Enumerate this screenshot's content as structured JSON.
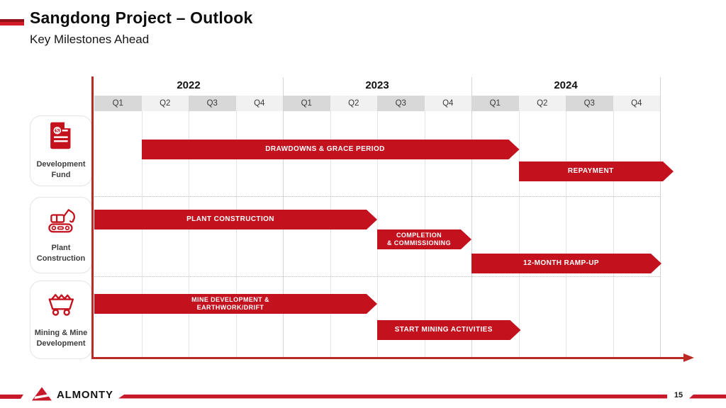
{
  "slide": {
    "title": "Sangdong Project – Outlook",
    "subtitle": "Key Milestones Ahead",
    "page_number": "15",
    "logo_text": "ALMONTY"
  },
  "colors": {
    "bar_red": "#c3121e",
    "axis_red": "#bb2b24",
    "footer_red": "#c8192b",
    "quarter_cell_dark": "#d8d8d8",
    "quarter_cell_light": "#f1f1f1"
  },
  "timeline": {
    "years": [
      {
        "label": "2022",
        "quarters": [
          "Q1",
          "Q2",
          "Q3",
          "Q4"
        ]
      },
      {
        "label": "2023",
        "quarters": [
          "Q1",
          "Q2",
          "Q3",
          "Q4"
        ]
      },
      {
        "label": "2024",
        "quarters": [
          "Q1",
          "Q2",
          "Q3",
          "Q4"
        ]
      }
    ]
  },
  "lanes": [
    {
      "label": "Development Fund",
      "icon": "document-dollar-icon"
    },
    {
      "label": "Plant Construction",
      "icon": "excavator-icon"
    },
    {
      "label": "Mining & Mine Development",
      "icon": "mine-cart-icon"
    }
  ],
  "chart_data": {
    "type": "bar",
    "subtype": "gantt-timeline",
    "title": "Sangdong Project – Outlook: Key Milestones Ahead",
    "x_axis_quarters": [
      "2022 Q1",
      "2022 Q2",
      "2022 Q3",
      "2022 Q4",
      "2023 Q1",
      "2023 Q2",
      "2023 Q3",
      "2023 Q4",
      "2024 Q1",
      "2024 Q2",
      "2024 Q3",
      "2024 Q4"
    ],
    "legend": "none",
    "grid": true,
    "bars": [
      {
        "lane": "Development Fund",
        "label": "DRAWDOWNS & GRACE PERIOD",
        "start": "2022 Q2",
        "end": "2024 Q1",
        "start_index": 1,
        "end_index": 9
      },
      {
        "lane": "Development Fund",
        "label": "REPAYMENT",
        "start": "2024 Q2",
        "end": "beyond 2024 Q4",
        "start_index": 9,
        "end_index": 12,
        "extends_beyond_axis": true
      },
      {
        "lane": "Plant Construction",
        "label": "PLANT CONSTRUCTION",
        "start": "2022 Q1",
        "end": "2023 Q2",
        "start_index": 0,
        "end_index": 6
      },
      {
        "lane": "Plant Construction",
        "label": "COMPLETION & COMMISSIONING",
        "label_lines": [
          "COMPLETION",
          "& COMMISSIONING"
        ],
        "start": "2023 Q3",
        "end": "2023 Q4",
        "start_index": 6,
        "end_index": 8
      },
      {
        "lane": "Plant Construction",
        "label": "12-MONTH RAMP-UP",
        "start": "2024 Q1",
        "end": "2024 Q4",
        "start_index": 8,
        "end_index": 12
      },
      {
        "lane": "Mining & Mine Development",
        "label": "MINE DEVELOPMENT & EARTHWORK/DRIFT",
        "label_lines": [
          "MINE DEVELOPMENT &",
          "EARTHWORK/DRIFT"
        ],
        "start": "2022 Q1",
        "end": "2023 Q2",
        "start_index": 0,
        "end_index": 6
      },
      {
        "lane": "Mining & Mine Development",
        "label": "START MINING ACTIVITIES",
        "start": "2023 Q3",
        "end": "2024 Q1",
        "start_index": 6,
        "end_index": 9
      }
    ]
  }
}
